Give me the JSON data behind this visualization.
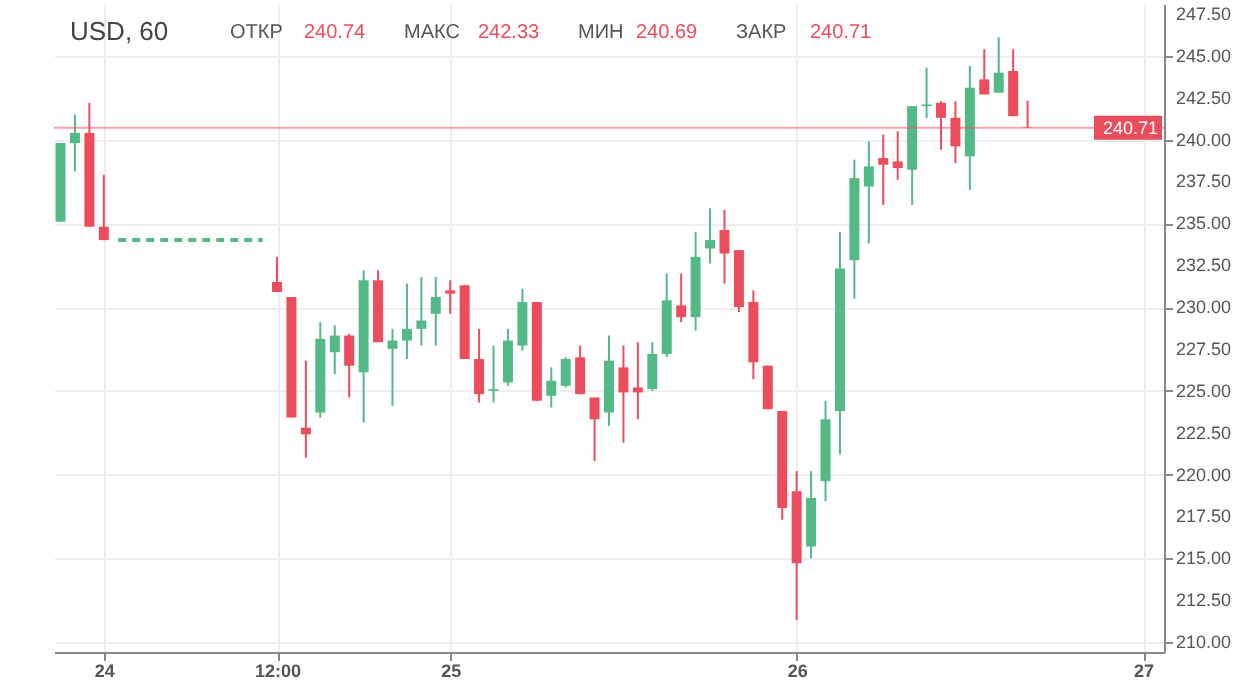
{
  "chart_data": {
    "type": "candlestick",
    "title": "USD, 60",
    "annotations": [
      "ОТКР 240.74",
      "МАКС 242.33",
      "МИН 240.69",
      "ЗАКР 240.71"
    ],
    "categories": [
      null,
      null,
      null,
      "24",
      null,
      null,
      null,
      null,
      null,
      null,
      null,
      null,
      null,
      null,
      null,
      "12:00",
      null,
      null,
      null,
      null,
      null,
      null,
      null,
      null,
      null,
      null,
      null,
      "25",
      null,
      null,
      null,
      null,
      null,
      null,
      null,
      null,
      null,
      null,
      null,
      null,
      null,
      null,
      null,
      null,
      null,
      null,
      null,
      null,
      null,
      null,
      null,
      "26",
      null,
      null,
      null,
      null,
      null,
      null,
      null,
      null,
      null,
      null,
      null,
      null,
      null,
      null,
      null,
      null,
      null,
      null,
      null,
      null,
      null,
      null,
      null,
      "27",
      null
    ],
    "ohlc": [
      [
        235.1,
        239.8,
        235.1,
        239.8
      ],
      [
        239.8,
        241.5,
        238.1,
        240.4
      ],
      [
        240.4,
        242.2,
        234.8,
        234.8
      ],
      [
        234.8,
        237.9,
        234.0,
        234.0
      ],
      null,
      null,
      null,
      null,
      null,
      null,
      null,
      null,
      null,
      null,
      null,
      [
        231.5,
        233.0,
        230.9,
        230.9
      ],
      [
        230.6,
        230.6,
        223.4,
        223.4
      ],
      [
        222.8,
        226.8,
        221.0,
        222.4
      ],
      [
        223.7,
        229.1,
        223.4,
        228.1
      ],
      [
        227.3,
        228.9,
        226.0,
        228.3
      ],
      [
        228.3,
        228.4,
        224.6,
        226.5
      ],
      [
        226.1,
        232.2,
        223.1,
        231.6
      ],
      [
        231.6,
        232.2,
        227.9,
        227.9
      ],
      [
        227.5,
        228.7,
        224.1,
        228.0
      ],
      [
        228.0,
        231.4,
        226.9,
        228.7
      ],
      [
        228.7,
        231.8,
        227.7,
        229.2
      ],
      [
        229.6,
        231.8,
        227.7,
        230.6
      ],
      [
        231.0,
        231.6,
        229.6,
        230.8
      ],
      [
        231.3,
        231.3,
        226.9,
        226.9
      ],
      [
        226.9,
        228.7,
        224.3,
        224.8
      ],
      [
        225.0,
        227.7,
        224.3,
        225.1
      ],
      [
        225.5,
        228.7,
        225.3,
        228.0
      ],
      [
        227.7,
        231.1,
        227.4,
        230.3
      ],
      [
        230.3,
        230.3,
        224.4,
        224.4
      ],
      [
        224.7,
        226.4,
        224.0,
        225.6
      ],
      [
        225.3,
        227.0,
        225.2,
        226.9
      ],
      [
        227.0,
        227.7,
        224.8,
        224.8
      ],
      [
        224.6,
        224.6,
        220.8,
        223.3
      ],
      [
        223.7,
        228.3,
        222.9,
        226.8
      ],
      [
        226.4,
        227.7,
        221.9,
        224.9
      ],
      [
        225.2,
        227.9,
        223.3,
        224.9
      ],
      [
        225.1,
        227.9,
        225.0,
        227.2
      ],
      [
        227.2,
        232.0,
        227.0,
        230.4
      ],
      [
        230.1,
        232.0,
        229.1,
        229.4
      ],
      [
        229.4,
        234.5,
        228.6,
        233.0
      ],
      [
        233.5,
        235.9,
        232.6,
        234.0
      ],
      [
        234.6,
        235.8,
        231.4,
        233.2
      ],
      [
        233.4,
        233.4,
        229.7,
        230.0
      ],
      [
        230.3,
        231.0,
        225.7,
        226.7
      ],
      [
        226.5,
        226.5,
        223.9,
        223.9
      ],
      [
        223.8,
        223.8,
        217.3,
        218.0
      ],
      [
        219.0,
        220.2,
        211.3,
        214.7
      ],
      [
        215.7,
        220.2,
        215.0,
        218.6
      ],
      [
        219.6,
        224.4,
        218.4,
        223.3
      ],
      [
        223.8,
        234.5,
        221.2,
        232.3
      ],
      [
        232.8,
        238.8,
        230.5,
        237.7
      ],
      [
        237.2,
        239.9,
        233.8,
        238.4
      ],
      [
        238.9,
        240.3,
        236.1,
        238.5
      ],
      [
        238.7,
        240.5,
        237.6,
        238.3
      ],
      [
        238.2,
        242.0,
        236.1,
        242.0
      ],
      [
        242.0,
        244.3,
        241.3,
        242.1
      ],
      [
        242.2,
        242.3,
        239.4,
        241.3
      ],
      [
        241.3,
        242.3,
        238.6,
        239.6
      ],
      [
        239.0,
        244.4,
        237.0,
        243.1
      ],
      [
        243.6,
        245.4,
        242.7,
        242.7
      ],
      [
        242.8,
        246.1,
        242.8,
        244.0
      ],
      [
        244.1,
        245.4,
        241.4,
        241.4
      ],
      [
        240.74,
        242.33,
        240.69,
        240.71
      ],
      null,
      null,
      null,
      null,
      null,
      null,
      null,
      null,
      null
    ],
    "colors": [
      "#53b987",
      "#53b987",
      "#eb4d5c",
      "#eb4d5c",
      null,
      null,
      null,
      null,
      null,
      null,
      null,
      null,
      null,
      null,
      null,
      "#eb4d5c",
      "#eb4d5c",
      "#eb4d5c",
      "#53b987",
      "#53b987",
      "#eb4d5c",
      "#53b987",
      "#eb4d5c",
      "#53b987",
      "#53b987",
      "#53b987",
      "#53b987",
      "#eb4d5c",
      "#eb4d5c",
      "#eb4d5c",
      "#53b987",
      "#53b987",
      "#53b987",
      "#eb4d5c",
      "#53b987",
      "#53b987",
      "#eb4d5c",
      "#eb4d5c",
      "#53b987",
      "#eb4d5c",
      "#eb4d5c",
      "#53b987",
      "#53b987",
      "#eb4d5c",
      "#53b987",
      "#53b987",
      "#eb4d5c",
      "#eb4d5c",
      "#eb4d5c",
      "#eb4d5c",
      "#eb4d5c",
      "#eb4d5c",
      "#53b987",
      "#53b987",
      "#53b987",
      "#53b987",
      "#53b987",
      "#eb4d5c",
      "#eb4d5c",
      "#53b987",
      "#53b987",
      "#eb4d5c",
      "#eb4d5c",
      "#53b987",
      "#eb4d5c",
      "#53b987",
      "#eb4d5c",
      "#eb4d5c",
      null,
      null,
      null,
      null,
      null,
      null,
      null,
      null,
      null
    ],
    "series": [
      {
        "type": "line",
        "color": "#53b987",
        "line_style": "dashed",
        "values": [
          null,
          null,
          null,
          null,
          234.0,
          234.0,
          234.0,
          234.0,
          234.0,
          234.0,
          234.0,
          234.0,
          234.0,
          234.0,
          234.0,
          null,
          null,
          null,
          null,
          null,
          null,
          null,
          null,
          null,
          null,
          null,
          null,
          null,
          null,
          null,
          null,
          null,
          null,
          null,
          null,
          null,
          null,
          null,
          null,
          null,
          null,
          null,
          null,
          null,
          null,
          null,
          null,
          null,
          null,
          null,
          null,
          null,
          null,
          null,
          null,
          null,
          null,
          null,
          null,
          null,
          null,
          null,
          null,
          null,
          null,
          null,
          null,
          null,
          null,
          null,
          null,
          null,
          null,
          null,
          null,
          null,
          null
        ]
      }
    ],
    "ref_lines": [
      {
        "axis": "y",
        "value": 240.71,
        "label": "240.71",
        "color": "#eb4d5c"
      }
    ],
    "ylim": [
      209.4,
      248.1
    ],
    "yticks": [
      {
        "value": 210,
        "label": "210.00"
      },
      {
        "value": 212.5,
        "label": "212.50"
      },
      {
        "value": 215,
        "label": "215.00"
      },
      {
        "value": 217.5,
        "label": "217.50"
      },
      {
        "value": 220,
        "label": "220.00"
      },
      {
        "value": 222.5,
        "label": "222.50"
      },
      {
        "value": 225,
        "label": "225.00"
      },
      {
        "value": 227.5,
        "label": "227.50"
      },
      {
        "value": 230,
        "label": "230.00"
      },
      {
        "value": 232.5,
        "label": "232.50"
      },
      {
        "value": 235,
        "label": "235.00"
      },
      {
        "value": 237.5,
        "label": "237.50"
      },
      {
        "value": 240,
        "label": "240.00"
      },
      {
        "value": 242.5,
        "label": "242.50"
      },
      {
        "value": 245,
        "label": "245.00"
      },
      {
        "value": 247.5,
        "label": "247.50"
      }
    ],
    "grid": true
  }
}
